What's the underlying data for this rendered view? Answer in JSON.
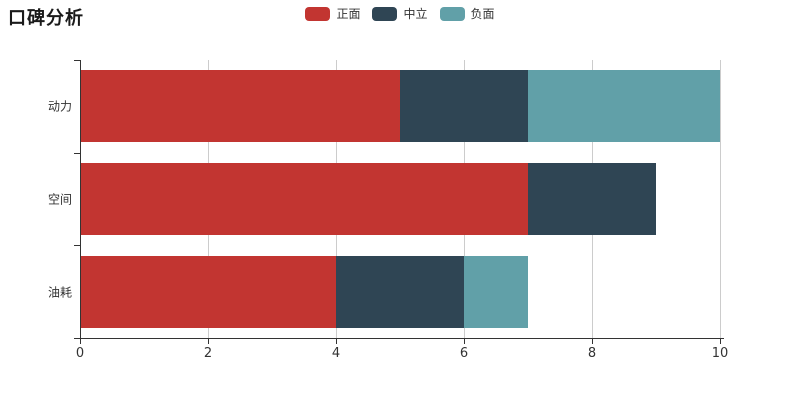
{
  "chart_title": "口碑分析",
  "chart_data": {
    "type": "bar",
    "orientation": "horizontal",
    "stacked": true,
    "title": "口碑分析",
    "categories": [
      "动力",
      "空间",
      "油耗"
    ],
    "series": [
      {
        "name": "正面",
        "color": "#c23531",
        "values": [
          5,
          7,
          4
        ]
      },
      {
        "name": "中立",
        "color": "#2f4554",
        "values": [
          2,
          2,
          2
        ]
      },
      {
        "name": "负面",
        "color": "#61a0a8",
        "values": [
          3,
          0,
          1
        ]
      }
    ],
    "xlabel": "",
    "ylabel": "",
    "xlim": [
      0,
      10
    ],
    "xticks": [
      0,
      2,
      4,
      6,
      8,
      10
    ],
    "grid": true,
    "legend_position": "top-center",
    "colors": {
      "axis": "#333333",
      "gridline": "#cccccc",
      "text": "#333333",
      "background": "#ffffff"
    }
  }
}
